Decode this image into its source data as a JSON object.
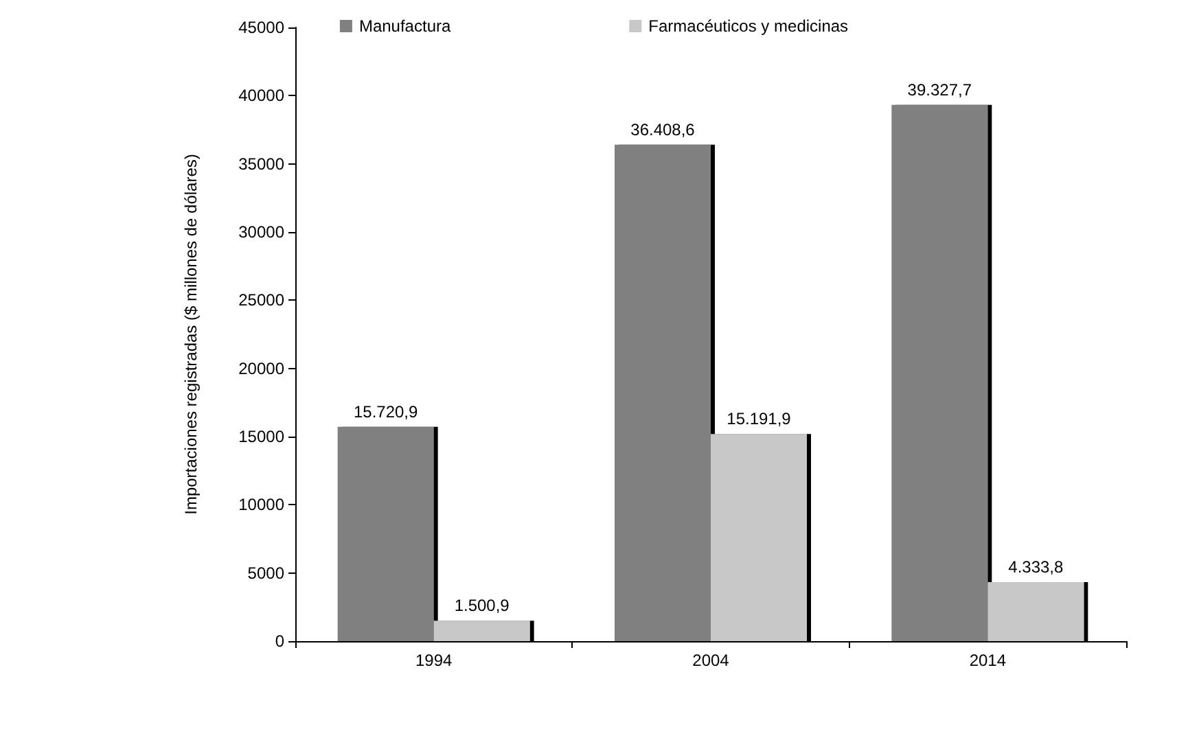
{
  "chart_data": {
    "type": "bar",
    "ylabel": "Importaciones registradas ($ millones de dólares)",
    "categories": [
      "1994",
      "2004",
      "2014"
    ],
    "series": [
      {
        "name": "Manufactura",
        "color": "#808080",
        "values": [
          15720.9,
          36408.6,
          39327.7
        ],
        "value_labels": [
          "15.720,9",
          "36.408,6",
          "39.327,7"
        ]
      },
      {
        "name": "Farmacéuticos y medicinas",
        "color": "#c8c8c8",
        "values": [
          1500.9,
          15191.9,
          4333.8
        ],
        "value_labels": [
          "1.500,9",
          "15.191,9",
          "4.333,8"
        ]
      }
    ],
    "ylim": [
      0,
      45000
    ],
    "yticks": [
      0,
      5000,
      10000,
      15000,
      20000,
      25000,
      30000,
      35000,
      40000,
      45000
    ],
    "grid": false,
    "legend": "top"
  }
}
